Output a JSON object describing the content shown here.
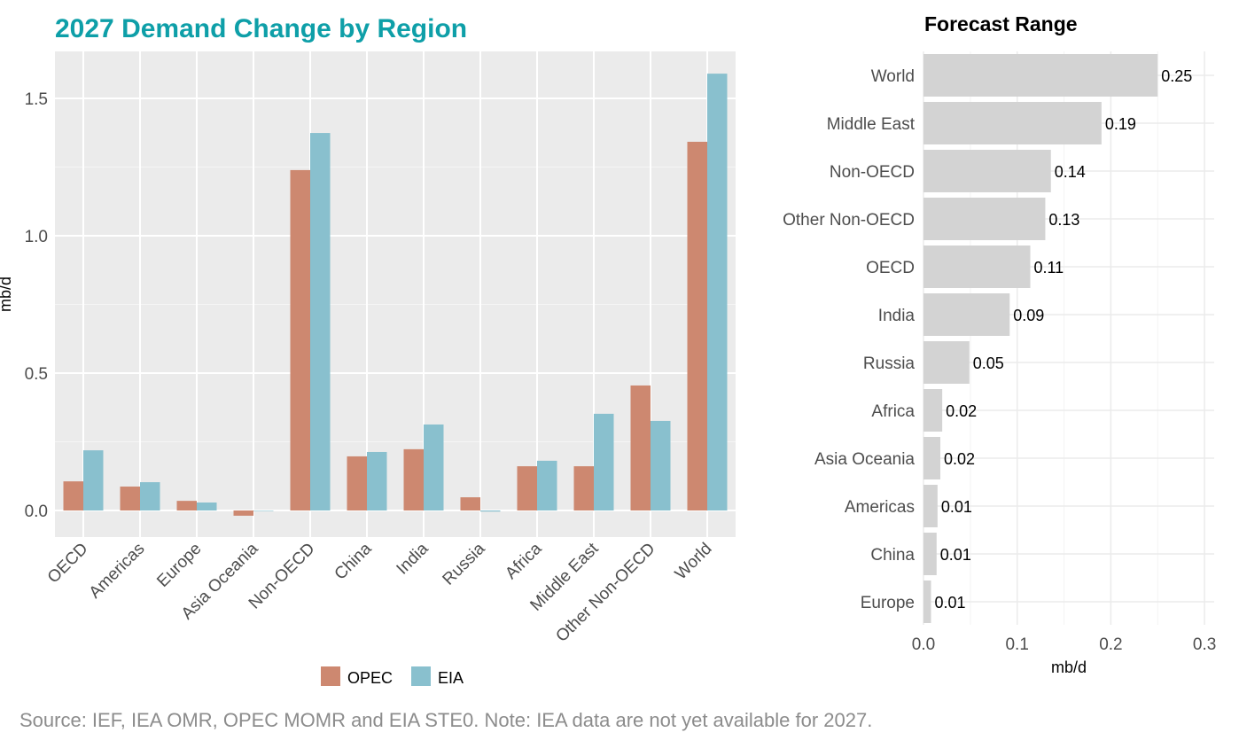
{
  "source_note": "Source: IEF, IEA OMR, OPEC MOMR and EIA STE0. Note: IEA data are not yet available for 2027.",
  "chart_data": [
    {
      "type": "bar",
      "title": "2027 Demand Change by Region",
      "title_color": "#0E9FA8",
      "ylabel": "mb/d",
      "xlabel": "",
      "ylim": [
        -0.1,
        1.67
      ],
      "yticks": [
        0.0,
        0.5,
        1.0,
        1.5
      ],
      "ytick_labels": [
        "0.0",
        "0.5",
        "1.0",
        "1.5"
      ],
      "grid": true,
      "legend_position": "bottom",
      "categories": [
        "OECD",
        "Americas",
        "Europe",
        "Asia Oceania",
        "Non-OECD",
        "China",
        "India",
        "Russia",
        "Africa",
        "Middle East",
        "Other Non-OECD",
        "World"
      ],
      "series": [
        {
          "name": "OPEC",
          "color": "#CD8870",
          "values": [
            0.106,
            0.087,
            0.035,
            -0.019,
            1.239,
            0.197,
            0.223,
            0.048,
            0.161,
            0.161,
            0.455,
            1.342
          ]
        },
        {
          "name": "EIA",
          "color": "#89C0CE",
          "values": [
            0.219,
            0.103,
            0.029,
            0.0,
            1.374,
            0.213,
            0.313,
            -0.004,
            0.181,
            0.352,
            0.326,
            1.59
          ]
        }
      ]
    },
    {
      "type": "bar",
      "orientation": "horizontal",
      "title": "Forecast Range",
      "xlabel": "mb/d",
      "xlim": [
        0,
        0.3
      ],
      "xticks": [
        0.0,
        0.1,
        0.2,
        0.3
      ],
      "xtick_labels": [
        "0.0",
        "0.1",
        "0.2",
        "0.3"
      ],
      "grid": true,
      "bar_color": "#D3D3D3",
      "categories": [
        "World",
        "Middle East",
        "Non-OECD",
        "Other Non-OECD",
        "OECD",
        "India",
        "Russia",
        "Africa",
        "Asia Oceania",
        "Americas",
        "China",
        "Europe"
      ],
      "values": [
        0.25,
        0.19,
        0.136,
        0.13,
        0.114,
        0.092,
        0.049,
        0.02,
        0.018,
        0.015,
        0.014,
        0.008
      ],
      "data_labels": [
        "0.25",
        "0.19",
        "0.14",
        "0.13",
        "0.11",
        "0.09",
        "0.05",
        "0.02",
        "0.02",
        "0.01",
        "0.01",
        "0.01"
      ]
    }
  ]
}
